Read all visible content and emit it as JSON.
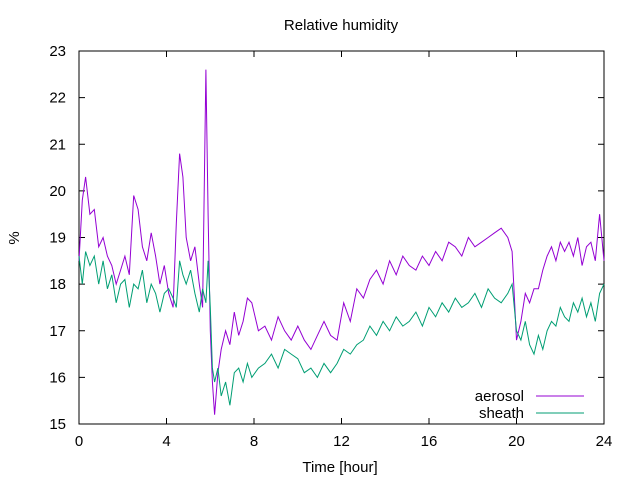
{
  "chart_data": {
    "type": "line",
    "title": "Relative humidity",
    "xlabel": "Time [hour]",
    "ylabel": "%",
    "xlim": [
      0,
      24
    ],
    "ylim": [
      15,
      23
    ],
    "xticks": [
      0,
      4,
      8,
      12,
      16,
      20,
      24
    ],
    "yticks": [
      15,
      16,
      17,
      18,
      19,
      20,
      21,
      22,
      23
    ],
    "grid": false,
    "legend_position": "bottom-right",
    "series": [
      {
        "name": "aerosol",
        "color": "#9400d3",
        "x": [
          0,
          0.15,
          0.3,
          0.5,
          0.7,
          0.9,
          1.1,
          1.3,
          1.5,
          1.7,
          1.9,
          2.1,
          2.3,
          2.5,
          2.7,
          2.9,
          3.1,
          3.3,
          3.5,
          3.7,
          3.9,
          4.1,
          4.3,
          4.45,
          4.6,
          4.75,
          4.9,
          5.1,
          5.3,
          5.5,
          5.65,
          5.8,
          5.9,
          6.0,
          6.1,
          6.2,
          6.35,
          6.5,
          6.7,
          6.9,
          7.1,
          7.3,
          7.5,
          7.7,
          7.9,
          8.2,
          8.5,
          8.8,
          9.1,
          9.4,
          9.7,
          10.0,
          10.3,
          10.6,
          10.9,
          11.2,
          11.5,
          11.8,
          12.1,
          12.4,
          12.7,
          13.0,
          13.3,
          13.6,
          13.9,
          14.2,
          14.5,
          14.8,
          15.1,
          15.4,
          15.7,
          16.0,
          16.3,
          16.6,
          16.9,
          17.2,
          17.5,
          17.8,
          18.1,
          18.4,
          18.7,
          19.0,
          19.3,
          19.6,
          19.8,
          20.0,
          20.2,
          20.4,
          20.6,
          20.8,
          21.0,
          21.2,
          21.4,
          21.6,
          21.8,
          22.0,
          22.2,
          22.4,
          22.6,
          22.8,
          23.0,
          23.2,
          23.4,
          23.6,
          23.8,
          24.0
        ],
        "values": [
          18.5,
          19.8,
          20.3,
          19.5,
          19.6,
          18.8,
          19.0,
          18.6,
          18.4,
          18.0,
          18.3,
          18.6,
          18.2,
          19.9,
          19.6,
          18.8,
          18.5,
          19.1,
          18.6,
          18.0,
          18.4,
          17.8,
          17.5,
          19.3,
          20.8,
          20.3,
          19.0,
          18.5,
          18.8,
          18.0,
          17.5,
          22.6,
          19.5,
          17.0,
          15.9,
          15.2,
          16.1,
          16.6,
          17.0,
          16.7,
          17.4,
          16.9,
          17.2,
          17.7,
          17.6,
          17.0,
          17.1,
          16.8,
          17.3,
          17.0,
          16.8,
          17.1,
          16.8,
          16.6,
          16.9,
          17.2,
          16.9,
          16.8,
          17.6,
          17.2,
          17.9,
          17.7,
          18.1,
          18.3,
          18.0,
          18.5,
          18.2,
          18.6,
          18.4,
          18.3,
          18.6,
          18.4,
          18.7,
          18.5,
          18.9,
          18.8,
          18.6,
          19.0,
          18.8,
          18.9,
          19.0,
          19.1,
          19.2,
          19.0,
          18.7,
          16.8,
          17.2,
          17.8,
          17.6,
          17.9,
          17.9,
          18.3,
          18.6,
          18.8,
          18.5,
          18.9,
          18.7,
          18.9,
          18.6,
          19.0,
          18.4,
          18.8,
          18.9,
          18.5,
          19.5,
          18.5
        ]
      },
      {
        "name": "sheath",
        "color": "#009e73",
        "x": [
          0,
          0.15,
          0.3,
          0.5,
          0.7,
          0.9,
          1.1,
          1.3,
          1.5,
          1.7,
          1.9,
          2.1,
          2.3,
          2.5,
          2.7,
          2.9,
          3.1,
          3.3,
          3.5,
          3.7,
          3.9,
          4.1,
          4.3,
          4.45,
          4.6,
          4.75,
          4.9,
          5.1,
          5.3,
          5.5,
          5.65,
          5.8,
          5.9,
          6.0,
          6.1,
          6.2,
          6.35,
          6.5,
          6.7,
          6.9,
          7.1,
          7.3,
          7.5,
          7.7,
          7.9,
          8.2,
          8.5,
          8.8,
          9.1,
          9.4,
          9.7,
          10.0,
          10.3,
          10.6,
          10.9,
          11.2,
          11.5,
          11.8,
          12.1,
          12.4,
          12.7,
          13.0,
          13.3,
          13.6,
          13.9,
          14.2,
          14.5,
          14.8,
          15.1,
          15.4,
          15.7,
          16.0,
          16.3,
          16.6,
          16.9,
          17.2,
          17.5,
          17.8,
          18.1,
          18.4,
          18.7,
          19.0,
          19.3,
          19.6,
          19.8,
          20.0,
          20.2,
          20.4,
          20.6,
          20.8,
          21.0,
          21.2,
          21.4,
          21.6,
          21.8,
          22.0,
          22.2,
          22.4,
          22.6,
          22.8,
          23.0,
          23.2,
          23.4,
          23.6,
          23.8,
          24.0
        ],
        "values": [
          18.6,
          18.0,
          18.7,
          18.4,
          18.6,
          18.0,
          18.5,
          17.9,
          18.2,
          17.6,
          18.0,
          18.1,
          17.5,
          18.0,
          17.9,
          18.3,
          17.6,
          18.0,
          17.8,
          17.4,
          17.8,
          17.9,
          17.7,
          17.5,
          18.5,
          18.2,
          18.0,
          18.3,
          17.8,
          17.4,
          17.9,
          17.6,
          18.5,
          17.5,
          16.2,
          15.9,
          16.2,
          15.6,
          15.9,
          15.4,
          16.1,
          16.2,
          15.9,
          16.3,
          16.0,
          16.2,
          16.3,
          16.5,
          16.2,
          16.6,
          16.5,
          16.4,
          16.1,
          16.2,
          16.0,
          16.3,
          16.1,
          16.3,
          16.6,
          16.5,
          16.7,
          16.8,
          17.1,
          16.9,
          17.2,
          17.0,
          17.3,
          17.1,
          17.2,
          17.4,
          17.1,
          17.5,
          17.3,
          17.6,
          17.4,
          17.7,
          17.5,
          17.6,
          17.8,
          17.5,
          17.9,
          17.7,
          17.6,
          17.8,
          18.0,
          17.0,
          16.8,
          17.2,
          16.7,
          16.5,
          16.9,
          16.6,
          17.0,
          17.2,
          17.1,
          17.5,
          17.3,
          17.2,
          17.6,
          17.4,
          17.7,
          17.3,
          17.6,
          17.2,
          17.8,
          18.0
        ]
      }
    ]
  }
}
